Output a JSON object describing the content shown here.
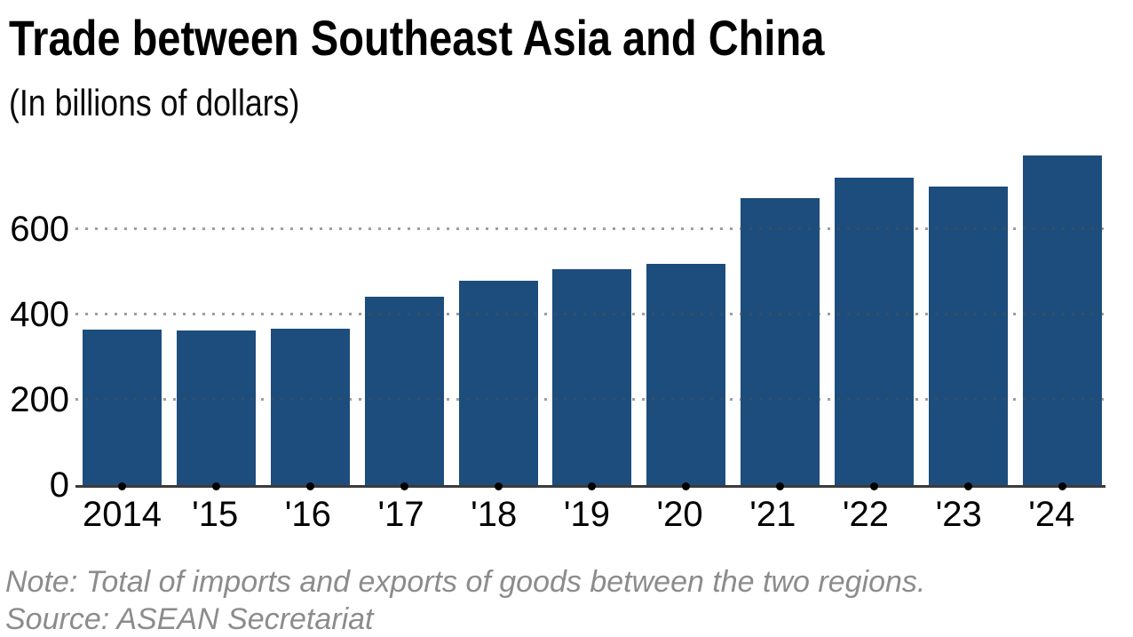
{
  "header": {
    "title": "Trade between Southeast Asia and China",
    "subtitle": "(In billions of dollars)"
  },
  "chart_data": {
    "type": "bar",
    "title": "Trade between Southeast Asia and China",
    "subtitle": "(In billions of dollars)",
    "units": "billions of dollars",
    "categories": [
      "2014",
      "'15",
      "'16",
      "'17",
      "'18",
      "'19",
      "'20",
      "'21",
      "'22",
      "'23",
      "'24"
    ],
    "values": [
      365,
      361,
      367,
      441,
      478,
      506,
      517,
      671,
      720,
      699,
      772
    ],
    "xlabel": "",
    "ylabel": "",
    "yticks": [
      0,
      200,
      400,
      600
    ],
    "ytick_labels": [
      "0",
      "200",
      "400",
      "600"
    ],
    "ylim": [
      0,
      790
    ],
    "grid": "horizontal-dotted",
    "legend": "none",
    "bar_color": "#1d4d7c"
  },
  "footnotes": {
    "note": "Note: Total of imports and exports of goods between the two regions.",
    "source": "Source: ASEAN Secretariat"
  },
  "colors": {
    "background": "#ffffff",
    "bar": "#1d4d7c",
    "axis_line": "#3b3b3b",
    "tick_dot": "#000000",
    "gridline": "#a8a8a8",
    "title_text": "#000000",
    "note_text": "#8c8c8c"
  }
}
